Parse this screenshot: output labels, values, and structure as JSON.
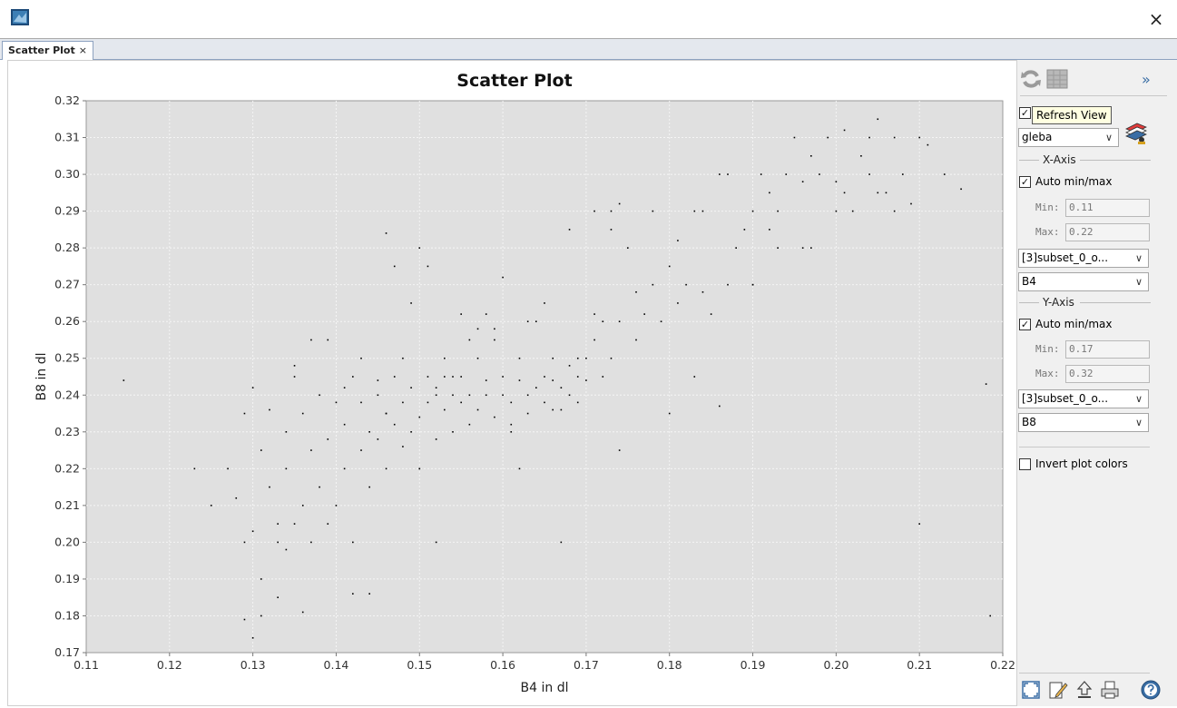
{
  "window": {
    "close_glyph": "×",
    "app_icon": "snap-app-icon"
  },
  "tab": {
    "label": "Scatter Plot",
    "close_glyph": "×"
  },
  "plot": {
    "title": "Scatter Plot",
    "xlabel": "B4 in dl",
    "ylabel": "B8 in dl",
    "xticks": [
      "0.11",
      "0.12",
      "0.13",
      "0.14",
      "0.15",
      "0.16",
      "0.17",
      "0.18",
      "0.19",
      "0.20",
      "0.21",
      "0.22"
    ],
    "yticks": [
      "0.17",
      "0.18",
      "0.19",
      "0.20",
      "0.21",
      "0.22",
      "0.23",
      "0.24",
      "0.25",
      "0.26",
      "0.27",
      "0.28",
      "0.29",
      "0.30",
      "0.31",
      "0.32"
    ],
    "colors": {
      "plot_bg": "#e0e0e0",
      "grid": "#f5f5f5",
      "point": "#000000"
    }
  },
  "chart_data": {
    "type": "scatter",
    "title": "Scatter Plot",
    "xlabel": "B4 in dl",
    "ylabel": "B8 in dl",
    "xlim": [
      0.11,
      0.22
    ],
    "ylim": [
      0.17,
      0.32
    ],
    "grid": true,
    "x": [
      0.1145,
      0.123,
      0.125,
      0.127,
      0.128,
      0.129,
      0.129,
      0.13,
      0.13,
      0.131,
      0.131,
      0.132,
      0.132,
      0.133,
      0.133,
      0.134,
      0.134,
      0.135,
      0.135,
      0.136,
      0.136,
      0.137,
      0.137,
      0.138,
      0.138,
      0.139,
      0.139,
      0.14,
      0.14,
      0.141,
      0.141,
      0.142,
      0.142,
      0.143,
      0.143,
      0.144,
      0.144,
      0.145,
      0.145,
      0.146,
      0.146,
      0.147,
      0.147,
      0.148,
      0.148,
      0.149,
      0.149,
      0.15,
      0.15,
      0.151,
      0.151,
      0.152,
      0.152,
      0.153,
      0.153,
      0.154,
      0.154,
      0.155,
      0.155,
      0.156,
      0.156,
      0.157,
      0.157,
      0.158,
      0.158,
      0.159,
      0.159,
      0.16,
      0.16,
      0.161,
      0.161,
      0.162,
      0.162,
      0.163,
      0.163,
      0.164,
      0.164,
      0.165,
      0.165,
      0.166,
      0.166,
      0.167,
      0.167,
      0.168,
      0.168,
      0.169,
      0.169,
      0.17,
      0.17,
      0.171,
      0.171,
      0.172,
      0.172,
      0.173,
      0.173,
      0.174,
      0.174,
      0.175,
      0.176,
      0.177,
      0.178,
      0.179,
      0.18,
      0.181,
      0.182,
      0.183,
      0.184,
      0.185,
      0.186,
      0.187,
      0.188,
      0.189,
      0.19,
      0.191,
      0.192,
      0.193,
      0.194,
      0.195,
      0.196,
      0.197,
      0.198,
      0.199,
      0.2,
      0.201,
      0.202,
      0.203,
      0.204,
      0.205,
      0.206,
      0.207,
      0.208,
      0.209,
      0.21,
      0.211,
      0.213,
      0.215,
      0.218,
      0.2185,
      0.13,
      0.129,
      0.131,
      0.134,
      0.136,
      0.142,
      0.144,
      0.146,
      0.15,
      0.152,
      0.155,
      0.158,
      0.147,
      0.151,
      0.16,
      0.163,
      0.167,
      0.15,
      0.152,
      0.174,
      0.18,
      0.183,
      0.186,
      0.19,
      0.192,
      0.196,
      0.2,
      0.205,
      0.21,
      0.157,
      0.149,
      0.153,
      0.139,
      0.143,
      0.137,
      0.135,
      0.146,
      0.154,
      0.159,
      0.161,
      0.165,
      0.168,
      0.171,
      0.173,
      0.176,
      0.178,
      0.181,
      0.184,
      0.187,
      0.19,
      0.193,
      0.197,
      0.201,
      0.204,
      0.207,
      0.133,
      0.141,
      0.145,
      0.148,
      0.156,
      0.162,
      0.166,
      0.169
    ],
    "y": [
      0.244,
      0.22,
      0.21,
      0.22,
      0.212,
      0.2,
      0.235,
      0.203,
      0.242,
      0.225,
      0.19,
      0.215,
      0.236,
      0.2,
      0.185,
      0.23,
      0.22,
      0.205,
      0.245,
      0.21,
      0.235,
      0.2,
      0.225,
      0.215,
      0.24,
      0.205,
      0.228,
      0.21,
      0.238,
      0.22,
      0.232,
      0.2,
      0.245,
      0.225,
      0.238,
      0.215,
      0.23,
      0.228,
      0.24,
      0.22,
      0.235,
      0.232,
      0.245,
      0.226,
      0.238,
      0.23,
      0.242,
      0.234,
      0.22,
      0.238,
      0.245,
      0.228,
      0.242,
      0.236,
      0.25,
      0.23,
      0.24,
      0.238,
      0.245,
      0.232,
      0.24,
      0.236,
      0.25,
      0.24,
      0.244,
      0.234,
      0.255,
      0.24,
      0.245,
      0.238,
      0.232,
      0.244,
      0.25,
      0.24,
      0.235,
      0.242,
      0.26,
      0.245,
      0.238,
      0.244,
      0.25,
      0.242,
      0.236,
      0.248,
      0.24,
      0.245,
      0.238,
      0.25,
      0.244,
      0.255,
      0.29,
      0.245,
      0.26,
      0.29,
      0.25,
      0.292,
      0.26,
      0.28,
      0.255,
      0.262,
      0.27,
      0.26,
      0.275,
      0.265,
      0.27,
      0.29,
      0.268,
      0.262,
      0.3,
      0.27,
      0.28,
      0.285,
      0.29,
      0.3,
      0.295,
      0.29,
      0.3,
      0.31,
      0.298,
      0.305,
      0.3,
      0.31,
      0.298,
      0.312,
      0.29,
      0.305,
      0.3,
      0.315,
      0.295,
      0.31,
      0.3,
      0.292,
      0.31,
      0.308,
      0.3,
      0.296,
      0.243,
      0.18,
      0.174,
      0.179,
      0.18,
      0.198,
      0.181,
      0.186,
      0.186,
      0.284,
      0.28,
      0.2,
      0.262,
      0.262,
      0.275,
      0.275,
      0.272,
      0.26,
      0.2,
      0.22,
      0.24,
      0.225,
      0.235,
      0.245,
      0.237,
      0.27,
      0.285,
      0.28,
      0.29,
      0.295,
      0.205,
      0.258,
      0.265,
      0.245,
      0.255,
      0.25,
      0.255,
      0.248,
      0.235,
      0.245,
      0.258,
      0.23,
      0.265,
      0.285,
      0.262,
      0.285,
      0.268,
      0.29,
      0.282,
      0.29,
      0.3,
      0.27,
      0.28,
      0.28,
      0.295,
      0.31,
      0.29,
      0.205,
      0.242,
      0.244,
      0.25,
      0.255,
      0.22,
      0.236,
      0.25
    ]
  },
  "side": {
    "refresh_tooltip": "Refresh View",
    "layer_select": "gleba",
    "x_axis_title": "X-Axis",
    "x_auto_label": "Auto min/max",
    "x_min_label": "Min:",
    "x_min_value": "0.11",
    "x_max_label": "Max:",
    "x_max_value": "0.22",
    "x_product": "[3]subset_0_o...",
    "x_band": "B4",
    "y_axis_title": "Y-Axis",
    "y_auto_label": "Auto min/max",
    "y_min_label": "Min:",
    "y_min_value": "0.17",
    "y_max_label": "Max:",
    "y_max_value": "0.32",
    "y_product": "[3]subset_0_o...",
    "y_band": "B8",
    "invert_label": "Invert plot colors",
    "expand_glyph": "»",
    "check_glyph": "✓",
    "arrow_glyph": "∨"
  }
}
